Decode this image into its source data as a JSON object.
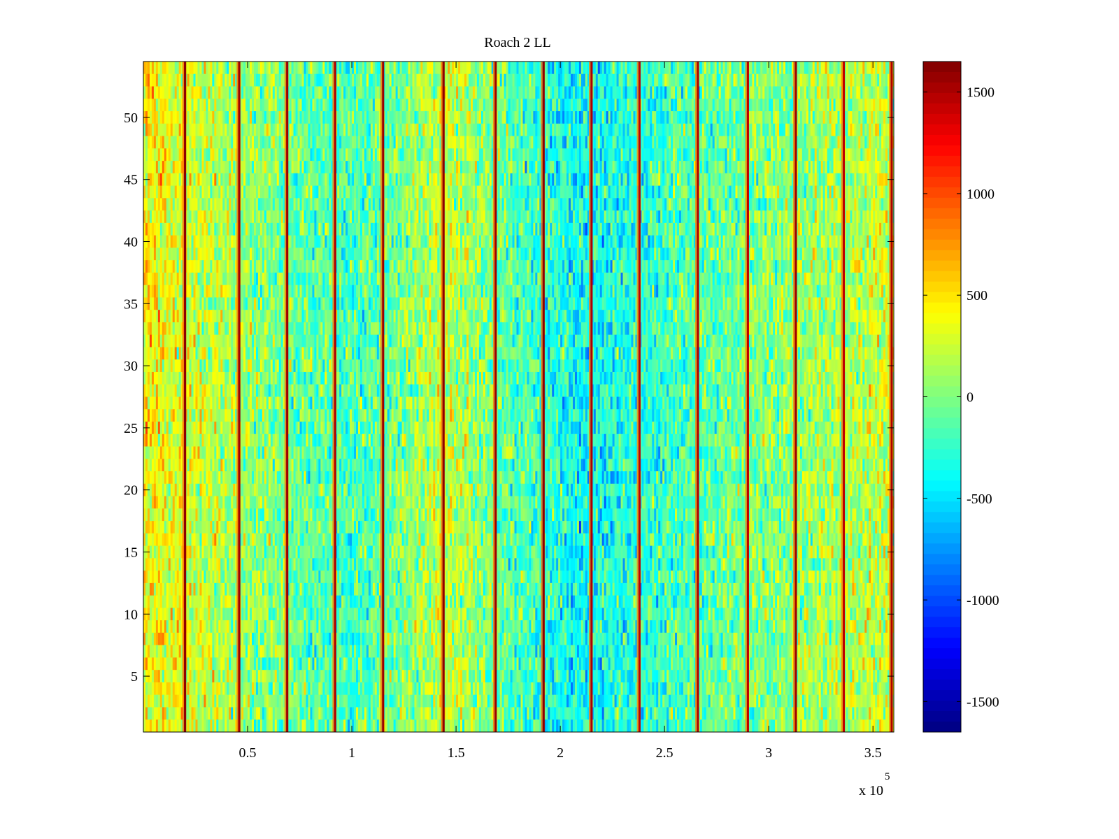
{
  "chart_data": {
    "type": "heatmap",
    "title": "Roach 2 LL",
    "xlabel": "",
    "ylabel": "",
    "x_exponent_label": "x 10",
    "x_exponent": "5",
    "xlim": [
      0,
      3.6
    ],
    "ylim": [
      0.5,
      54.5
    ],
    "x_ticks": [
      0.5,
      1,
      1.5,
      2,
      2.5,
      3,
      3.5
    ],
    "x_tick_labels": [
      "0.5",
      "1",
      "1.5",
      "2",
      "2.5",
      "3",
      "3.5"
    ],
    "y_ticks": [
      5,
      10,
      15,
      20,
      25,
      30,
      35,
      40,
      45,
      50
    ],
    "y_tick_labels": [
      "5",
      "10",
      "15",
      "20",
      "25",
      "30",
      "35",
      "40",
      "45",
      "50"
    ],
    "rows": 54,
    "colormap": "jet",
    "clim": [
      -1650,
      1650
    ],
    "colorbar": {
      "ticks": [
        -1500,
        -1000,
        -500,
        0,
        500,
        1000,
        1500
      ],
      "tick_labels": [
        "-1500",
        "-1000",
        "-500",
        "0",
        "500",
        "1000",
        "1500"
      ]
    },
    "stripes": [
      {
        "x": 0.2,
        "value": 1600
      },
      {
        "x": 0.46,
        "value": 1550
      },
      {
        "x": 0.69,
        "value": 1550
      },
      {
        "x": 0.92,
        "value": 1500
      },
      {
        "x": 1.15,
        "value": 1550
      },
      {
        "x": 1.44,
        "value": 1600
      },
      {
        "x": 1.69,
        "value": 1550
      },
      {
        "x": 1.92,
        "value": 1600
      },
      {
        "x": 2.15,
        "value": 1500
      },
      {
        "x": 2.38,
        "value": 1450
      },
      {
        "x": 2.66,
        "value": 1500
      },
      {
        "x": 2.9,
        "value": 1450
      },
      {
        "x": 3.13,
        "value": 1550
      },
      {
        "x": 3.36,
        "value": 1450
      },
      {
        "x": 3.59,
        "value": 1500
      }
    ],
    "regional_mean": [
      {
        "x": 0.0,
        "value": 450
      },
      {
        "x": 0.25,
        "value": 250
      },
      {
        "x": 0.55,
        "value": 50
      },
      {
        "x": 0.8,
        "value": -100
      },
      {
        "x": 1.0,
        "value": -200
      },
      {
        "x": 1.25,
        "value": 0
      },
      {
        "x": 1.45,
        "value": 250
      },
      {
        "x": 1.65,
        "value": 0
      },
      {
        "x": 1.85,
        "value": -200
      },
      {
        "x": 2.1,
        "value": -400
      },
      {
        "x": 2.35,
        "value": -300
      },
      {
        "x": 2.6,
        "value": -150
      },
      {
        "x": 2.85,
        "value": -50
      },
      {
        "x": 3.1,
        "value": 50
      },
      {
        "x": 3.35,
        "value": 150
      },
      {
        "x": 3.6,
        "value": 250
      }
    ]
  }
}
